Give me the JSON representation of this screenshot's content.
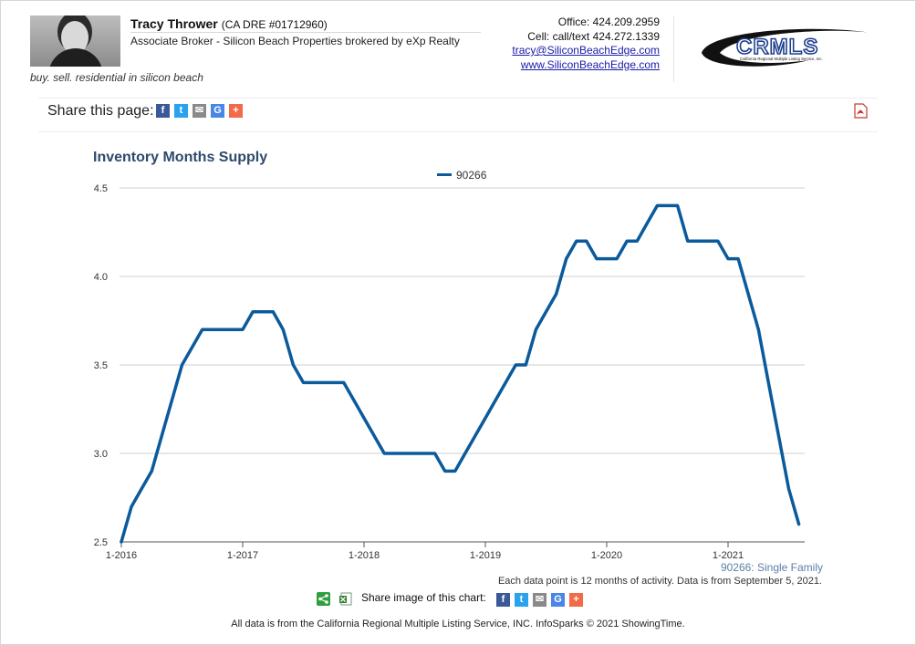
{
  "agent": {
    "name": "Tracy Thrower",
    "dre": "(CA DRE #01712960)",
    "role": "Associate Broker - Silicon Beach Properties brokered by eXp Realty",
    "tagline": "buy. sell. residential in silicon beach"
  },
  "contact": {
    "office": "Office: 424.209.2959",
    "cell": "Cell: call/text 424.272.1339",
    "email": "tracy@SiliconBeachEdge.com",
    "website": "www.SiliconBeachEdge.com"
  },
  "logo": {
    "text": "CRMLS",
    "subtext": "California Regional Multiple Listing Service, Inc."
  },
  "share": {
    "label": "Share this page:"
  },
  "share_image": {
    "label": "Share image of this chart:"
  },
  "chart_data": {
    "type": "line",
    "title": "Inventory Months Supply",
    "series": [
      {
        "name": "90266",
        "color": "#0a5a9c",
        "x": [
          "1-2016",
          "2-2016",
          "3-2016",
          "4-2016",
          "5-2016",
          "6-2016",
          "7-2016",
          "8-2016",
          "9-2016",
          "10-2016",
          "11-2016",
          "12-2016",
          "1-2017",
          "2-2017",
          "3-2017",
          "4-2017",
          "5-2017",
          "6-2017",
          "7-2017",
          "8-2017",
          "9-2017",
          "10-2017",
          "11-2017",
          "12-2017",
          "1-2018",
          "2-2018",
          "3-2018",
          "4-2018",
          "5-2018",
          "6-2018",
          "7-2018",
          "8-2018",
          "9-2018",
          "10-2018",
          "11-2018",
          "12-2018",
          "1-2019",
          "2-2019",
          "3-2019",
          "4-2019",
          "5-2019",
          "6-2019",
          "7-2019",
          "8-2019",
          "9-2019",
          "10-2019",
          "11-2019",
          "12-2019",
          "1-2020",
          "2-2020",
          "3-2020",
          "4-2020",
          "5-2020",
          "6-2020",
          "7-2020",
          "8-2020",
          "9-2020",
          "10-2020",
          "11-2020",
          "12-2020",
          "1-2021",
          "2-2021",
          "3-2021",
          "4-2021",
          "5-2021",
          "6-2021",
          "7-2021",
          "8-2021"
        ],
        "values": [
          2.5,
          2.7,
          2.8,
          2.9,
          3.1,
          3.3,
          3.5,
          3.6,
          3.7,
          3.7,
          3.7,
          3.7,
          3.7,
          3.8,
          3.8,
          3.8,
          3.7,
          3.5,
          3.4,
          3.4,
          3.4,
          3.4,
          3.4,
          3.3,
          3.2,
          3.1,
          3.0,
          3.0,
          3.0,
          3.0,
          3.0,
          3.0,
          2.9,
          2.9,
          3.0,
          3.1,
          3.2,
          3.3,
          3.4,
          3.5,
          3.5,
          3.7,
          3.8,
          3.9,
          4.1,
          4.2,
          4.2,
          4.1,
          4.1,
          4.1,
          4.2,
          4.2,
          4.3,
          4.4,
          4.4,
          4.4,
          4.2,
          4.2,
          4.2,
          4.2,
          4.1,
          4.1,
          3.9,
          3.7,
          3.4,
          3.1,
          2.8,
          2.6
        ]
      }
    ],
    "x_ticks": [
      "1-2016",
      "1-2017",
      "1-2018",
      "1-2019",
      "1-2020",
      "1-2021"
    ],
    "y_ticks": [
      "2.5",
      "3.0",
      "3.5",
      "4.0",
      "4.5"
    ],
    "ylim": [
      2.5,
      4.5
    ],
    "grid": true,
    "legend": "top-center",
    "source_label": "90266: Single Family",
    "note": "Each data point is 12 months of activity. Data is from September 5, 2021."
  },
  "footer": "All data is from the California Regional Multiple Listing Service, INC. InfoSparks © 2021 ShowingTime."
}
